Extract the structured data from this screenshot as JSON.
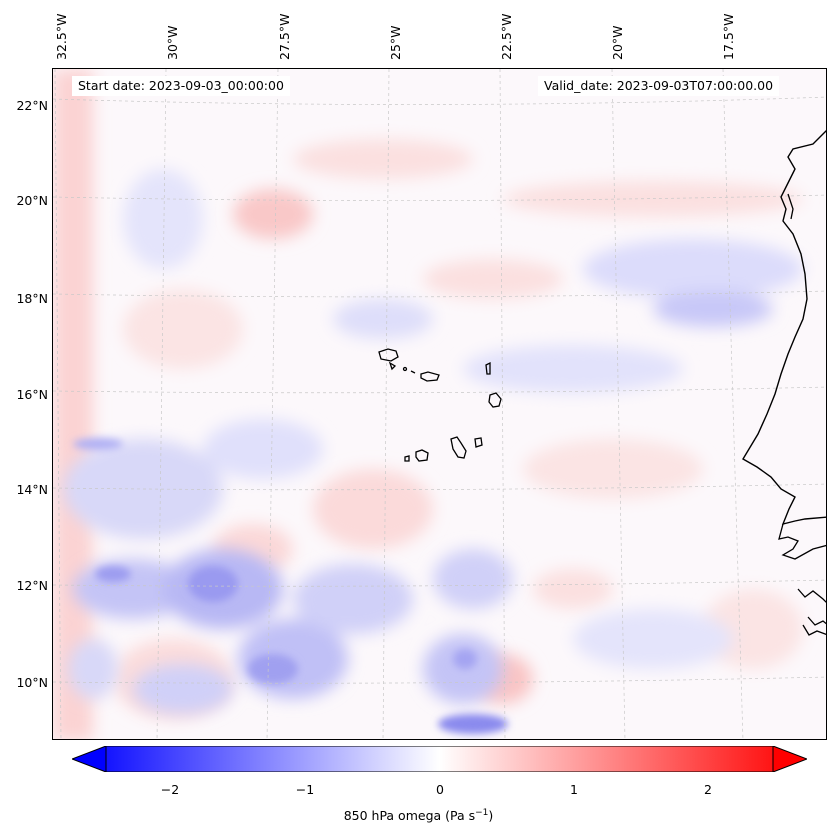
{
  "header": {
    "start_date": "Start date: 2023-09-03_00:00:00",
    "valid_date": "Valid_date: 2023-09-03T07:00:00.00"
  },
  "lon_labels": [
    "32.5°W",
    "30°W",
    "27.5°W",
    "25°W",
    "22.5°W",
    "20°W",
    "17.5°W"
  ],
  "lat_labels": [
    "22°N",
    "20°N",
    "18°N",
    "16°N",
    "14°N",
    "12°N",
    "10°N"
  ],
  "colorbar": {
    "label_prefix": "850 hPa omega (Pa s",
    "label_exp": "−1",
    "label_suffix": ")",
    "ticks": [
      "−2",
      "−1",
      "0",
      "1",
      "2"
    ],
    "range": [
      -2.5,
      2.5
    ],
    "negative_color": "#0000ff",
    "positive_color": "#ff0000",
    "zero_color": "#ffffff"
  }
}
